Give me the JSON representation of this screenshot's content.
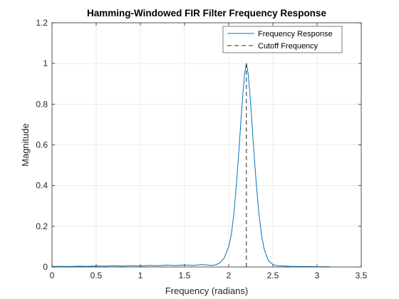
{
  "chart_data": {
    "type": "line",
    "title": "Hamming-Windowed FIR Filter Frequency Response",
    "xlabel": "Frequency (radians)",
    "ylabel": "Magnitude",
    "xlim": [
      0,
      3.5
    ],
    "ylim": [
      0,
      1.2
    ],
    "x_ticks": [
      0,
      0.5,
      1,
      1.5,
      2,
      2.5,
      3,
      3.5
    ],
    "x_tick_labels": [
      "0",
      "0.5",
      "1",
      "1.5",
      "2",
      "2.5",
      "3",
      "3.5"
    ],
    "y_ticks": [
      0,
      0.2,
      0.4,
      0.6,
      0.8,
      1,
      1.2
    ],
    "y_tick_labels": [
      "0",
      "0.2",
      "0.4",
      "0.6",
      "0.8",
      "1",
      "1.2"
    ],
    "grid": true,
    "legend_position": "top-right",
    "colors": {
      "response": "#0072BD",
      "cutoff": "#262626",
      "grid": "#e6e6e6",
      "axes": "#262626"
    },
    "series": [
      {
        "name": "Frequency Response",
        "style": "solid",
        "x": [
          0,
          0.1,
          0.2,
          0.3,
          0.4,
          0.5,
          0.6,
          0.7,
          0.8,
          0.9,
          1.0,
          1.1,
          1.2,
          1.3,
          1.4,
          1.5,
          1.6,
          1.7,
          1.8,
          1.85,
          1.9,
          1.95,
          2.0,
          2.03,
          2.06,
          2.09,
          2.12,
          2.14,
          2.16,
          2.18,
          2.2,
          2.22,
          2.24,
          2.26,
          2.28,
          2.31,
          2.34,
          2.37,
          2.4,
          2.45,
          2.5,
          2.55,
          2.6,
          2.7,
          2.8,
          2.9,
          3.0,
          3.1,
          3.14
        ],
        "y": [
          0.002,
          0.003,
          0.002,
          0.004,
          0.003,
          0.005,
          0.004,
          0.006,
          0.004,
          0.007,
          0.005,
          0.008,
          0.006,
          0.009,
          0.007,
          0.01,
          0.008,
          0.012,
          0.008,
          0.01,
          0.02,
          0.045,
          0.1,
          0.16,
          0.27,
          0.42,
          0.6,
          0.73,
          0.85,
          0.95,
          1.0,
          0.95,
          0.85,
          0.73,
          0.6,
          0.42,
          0.27,
          0.16,
          0.09,
          0.03,
          0.012,
          0.006,
          0.005,
          0.003,
          0.002,
          0.002,
          0.001,
          0.001,
          0.001
        ]
      },
      {
        "name": "Cutoff Frequency",
        "style": "dashed",
        "x": [
          2.2,
          2.2
        ],
        "y": [
          0,
          1.0
        ]
      }
    ]
  }
}
